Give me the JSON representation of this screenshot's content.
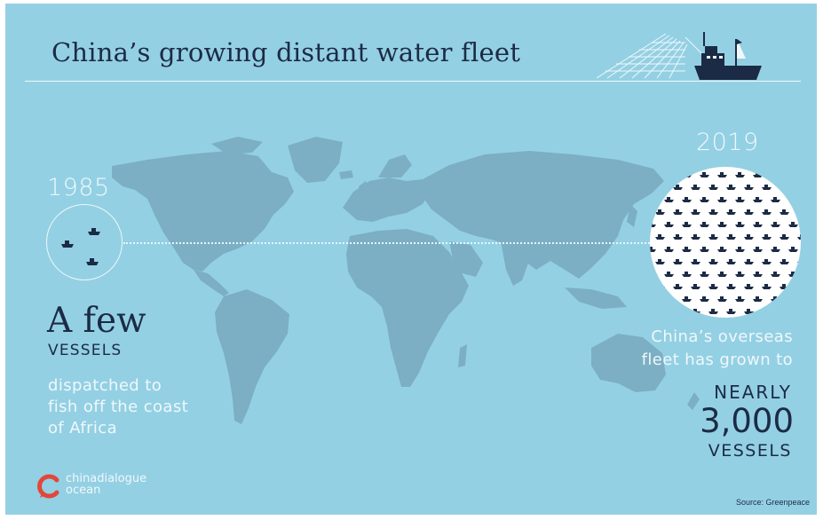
{
  "title": "China’s growing distant water fleet",
  "left": {
    "year": "1985",
    "headline": "A few",
    "unit": "VESSELS",
    "description_lines": [
      "dispatched to",
      "fish off the coast",
      "of Africa"
    ],
    "vessel_count_shown": 3
  },
  "right": {
    "year": "2019",
    "description_lines": [
      "China’s overseas",
      "fleet has grown to"
    ],
    "qualifier": "NEARLY",
    "number": "3,000",
    "unit": "VESSELS"
  },
  "logo": {
    "line1": "chinadialogue",
    "line2": "ocean"
  },
  "source": "Source: Greenpeace",
  "colors": {
    "background": "#94d0e3",
    "land": "#7cafc3",
    "navy": "#1c2b45",
    "light_text": "#eef8fb",
    "logo_red": "#e2473b"
  },
  "icons": {
    "ship": "fishing-trawler-icon",
    "vessel": "boat-icon",
    "logo": "speech-bubble-logo-icon"
  }
}
